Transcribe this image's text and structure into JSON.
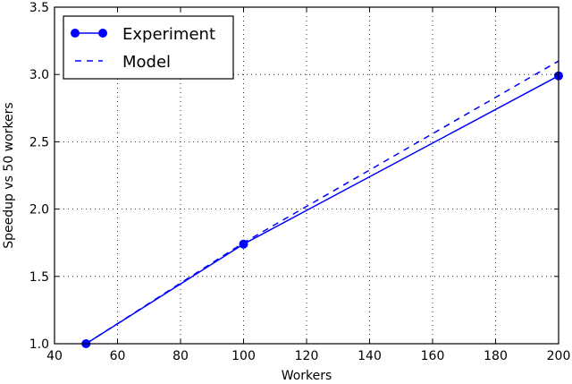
{
  "chart_data": {
    "type": "line",
    "title": "",
    "xlabel": "Workers",
    "ylabel": "Speedup vs 50 workers",
    "xlim": [
      40,
      200
    ],
    "ylim": [
      1.0,
      3.5
    ],
    "xticks": [
      40,
      60,
      80,
      100,
      120,
      140,
      160,
      180,
      200
    ],
    "yticks": [
      1.0,
      1.5,
      2.0,
      2.5,
      3.0,
      3.5
    ],
    "xtick_labels": [
      "40",
      "60",
      "80",
      "100",
      "120",
      "140",
      "160",
      "180",
      "200"
    ],
    "ytick_labels": [
      "1.0",
      "1.5",
      "2.0",
      "2.5",
      "3.0",
      "3.5"
    ],
    "grid": true,
    "legend_position": "upper left",
    "series": [
      {
        "name": "Experiment",
        "style": "solid line with circle markers",
        "color": "#0000ff",
        "x": [
          50,
          100,
          200
        ],
        "y": [
          1.0,
          1.74,
          2.99
        ]
      },
      {
        "name": "Model",
        "style": "dashed line",
        "color": "#0000ff",
        "x": [
          50,
          100,
          200
        ],
        "y": [
          1.0,
          1.75,
          3.1
        ]
      }
    ]
  }
}
